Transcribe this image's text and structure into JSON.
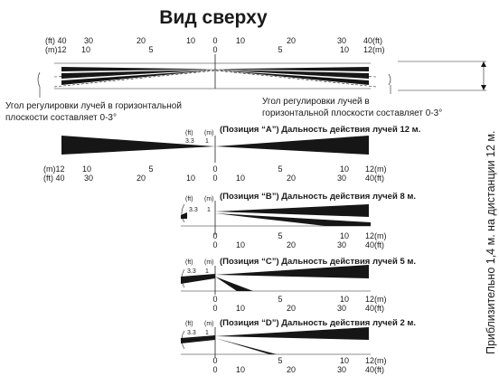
{
  "title": "Вид сверху",
  "top_view": {
    "left_ft_unit": "(ft) 40",
    "left_m_unit": "(m)12",
    "right_ft_unit": "40(ft)",
    "right_m_unit": "12(m)",
    "ft_ticks": [
      "30",
      "20",
      "10",
      "0",
      "10",
      "20",
      "30"
    ],
    "m_ticks": [
      "10",
      "5",
      "0",
      "5",
      "10"
    ]
  },
  "angle_note_left": [
    "Угол регулировки лучей в горизонтальной",
    "плоскости составляет 0-3°"
  ],
  "angle_note_right": [
    "Угол регулировки лучей в",
    "горизонтальной плоскости составляет 0-3°"
  ],
  "side_note": "Приблизительно 1,4 м. на дистанции 12 м.",
  "position_a": {
    "caption": "(Позиция “A”) Дальность действия лучей 12 м.",
    "height_ft_unit": "(ft)",
    "height_m_unit": "(m)",
    "height_ft": "3.3",
    "height_m": "1",
    "left_m_unit": "(m)12",
    "left_ft_unit": "(ft) 40",
    "right_m_unit": "12(m)",
    "right_ft_unit": "40(ft)",
    "m_ticks": [
      "10",
      "5",
      "0",
      "5",
      "10"
    ],
    "ft_ticks": [
      "30",
      "20",
      "10",
      "0",
      "10",
      "20",
      "30"
    ]
  },
  "position_b": {
    "caption": "(Позиция “B”) Дальность действия лучей 8 м.",
    "height_ft_unit": "(ft)",
    "height_m_unit": "(m)",
    "height_ft": "3.3",
    "height_m": "1",
    "m_ticks": [
      "0",
      "5",
      "10"
    ],
    "m_unit": "12(m)",
    "ft_ticks": [
      "0",
      "10",
      "20",
      "30"
    ],
    "ft_unit": "40(ft)"
  },
  "position_c": {
    "caption": "(Позиция “C”) Дальность действия лучей 5 м.",
    "height_ft_unit": "(ft)",
    "height_m_unit": "(m)",
    "height_ft": "3.3",
    "height_m": "1",
    "m_ticks": [
      "0",
      "5",
      "10"
    ],
    "m_unit": "12(m)",
    "ft_ticks": [
      "0",
      "10",
      "20",
      "30"
    ],
    "ft_unit": "40(ft)"
  },
  "position_d": {
    "caption": "(Позиция “D”) Дальность действия лучей 2 м.",
    "height_ft_unit": "(ft)",
    "height_m_unit": "(m)",
    "height_ft": "3.3",
    "height_m": "1",
    "m_ticks": [
      "0",
      "5",
      "10"
    ],
    "m_unit": "12(m)",
    "ft_ticks": [
      "0",
      "10",
      "20",
      "30"
    ],
    "ft_unit": "40(ft)"
  }
}
